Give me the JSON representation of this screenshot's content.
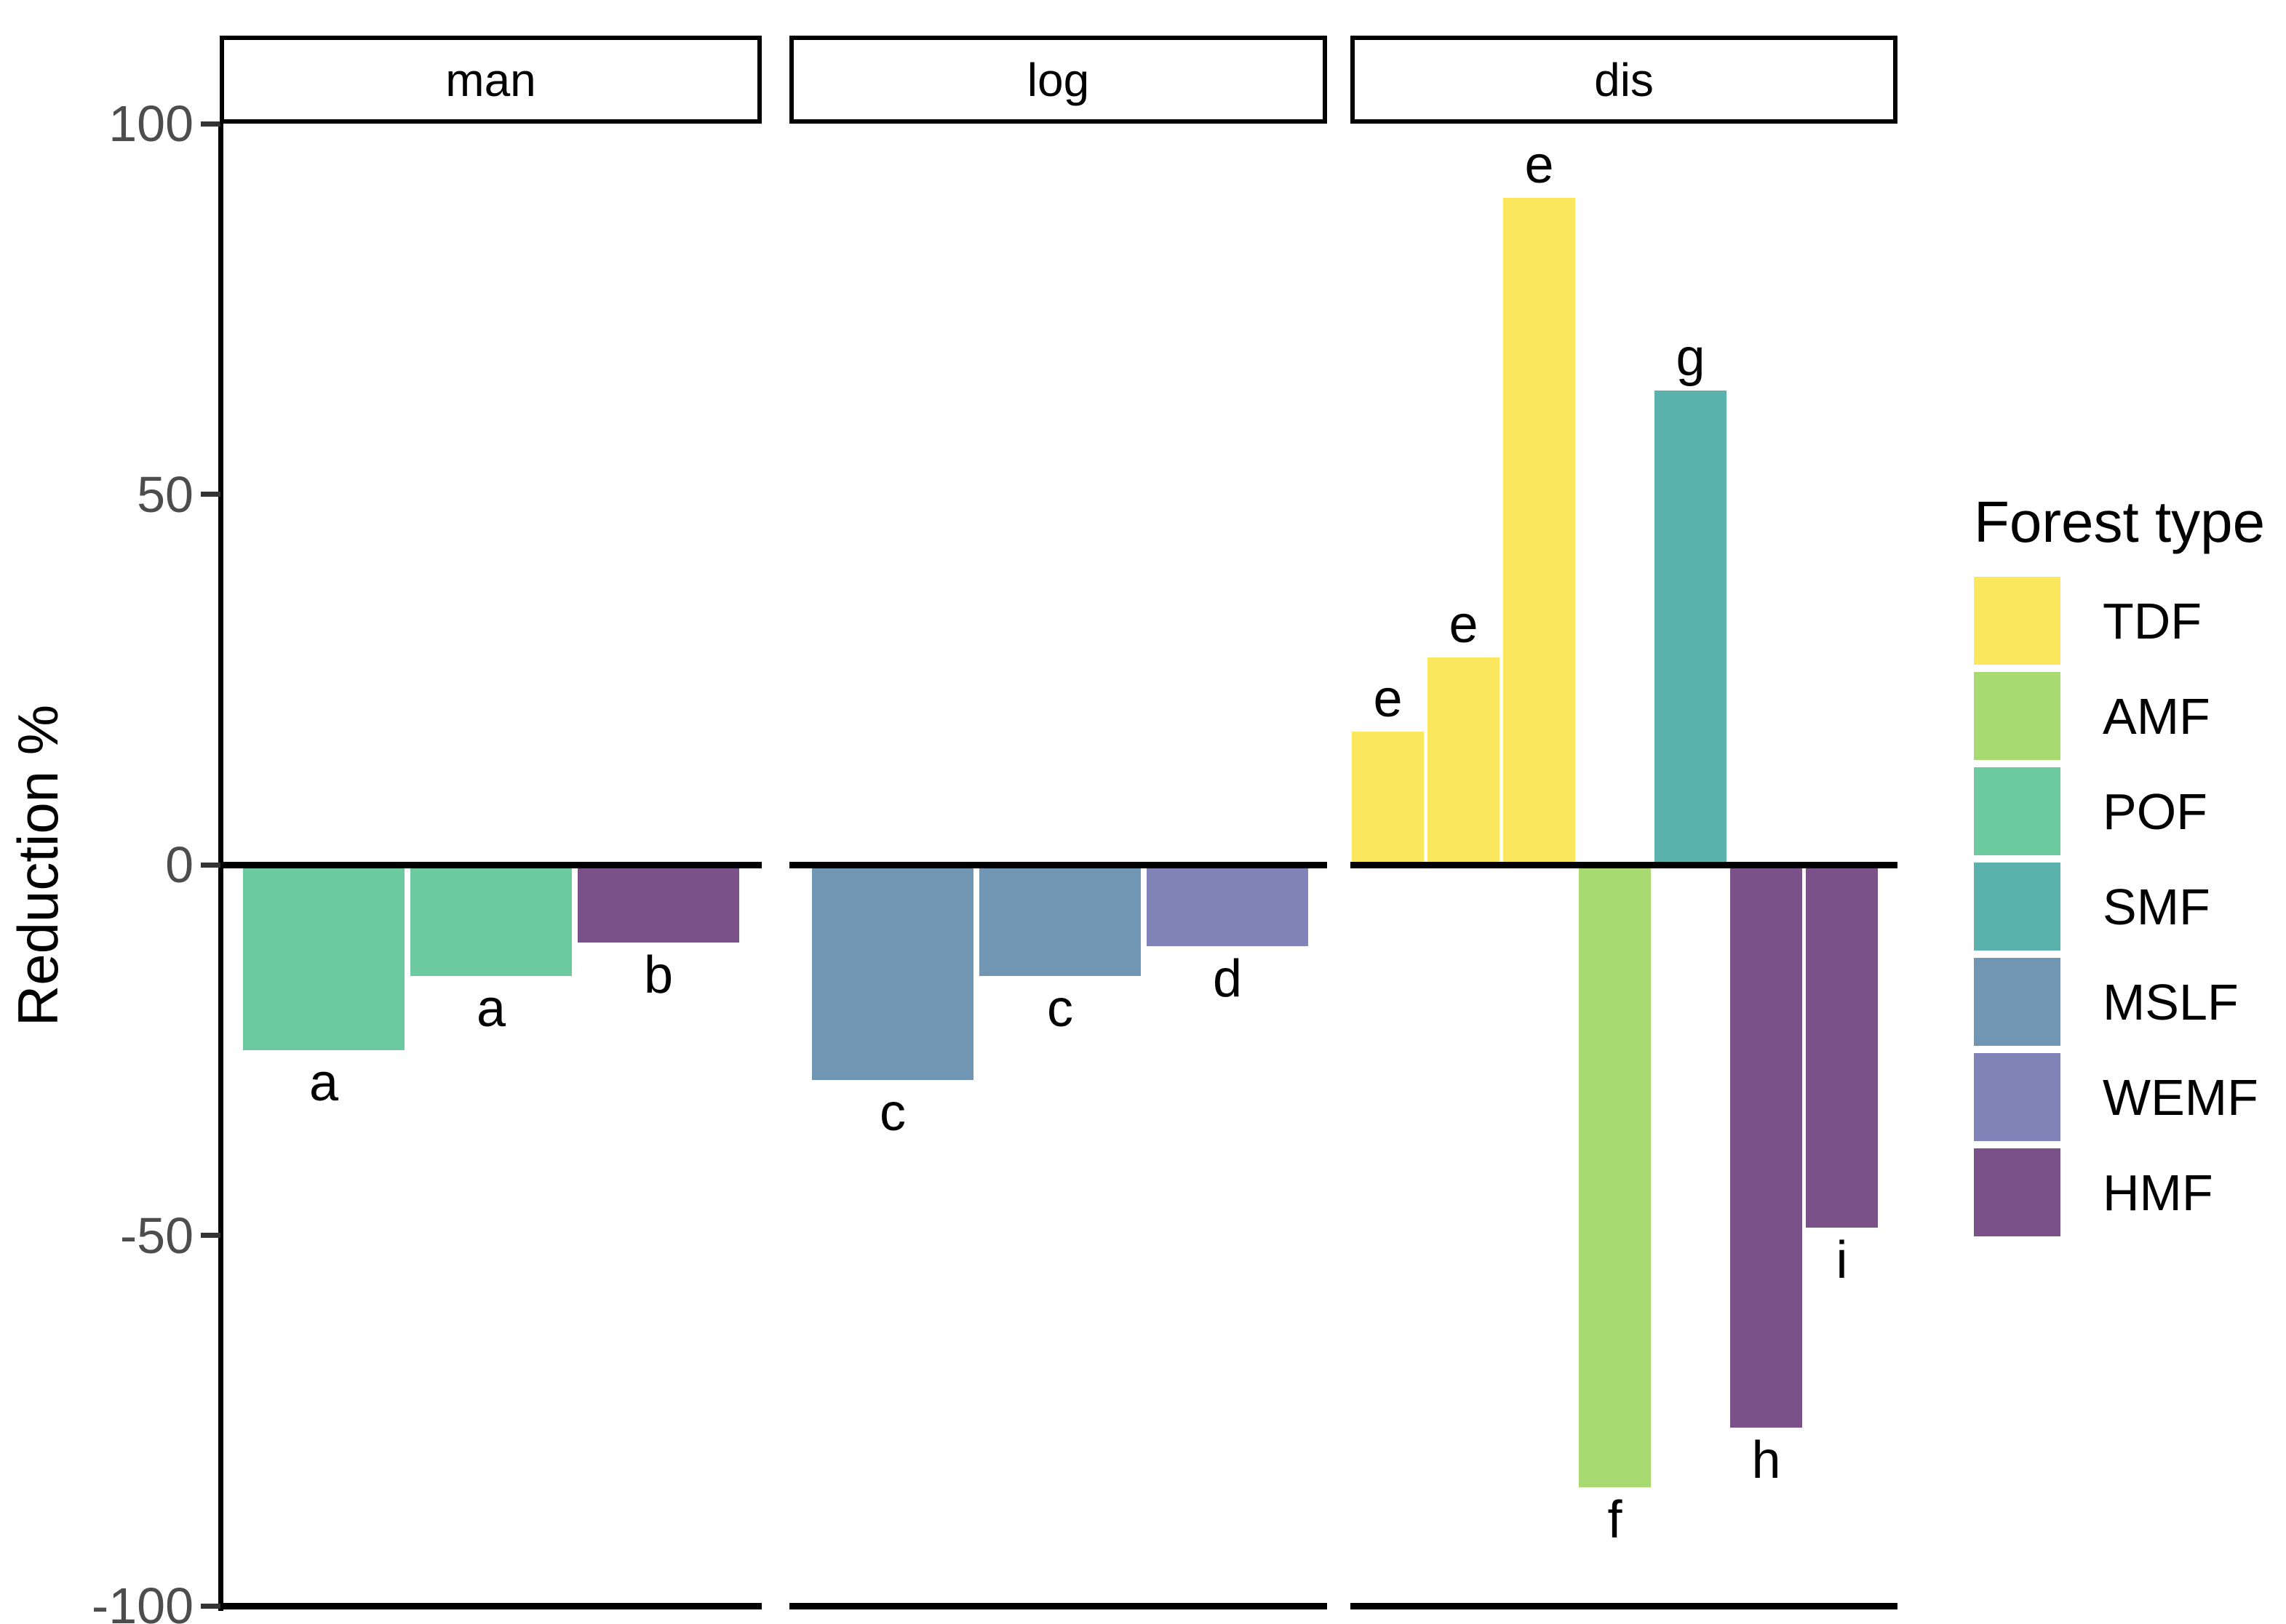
{
  "chart_data": {
    "type": "bar",
    "title": "",
    "ylabel": "Reduction %",
    "xlabel": "",
    "y_ticks": [
      100,
      50,
      0,
      -50,
      -100
    ],
    "ylim": [
      -100,
      100
    ],
    "grid": false,
    "legend_position": "right",
    "legend": {
      "title": "Forest type",
      "entries": [
        {
          "label": "TDF",
          "color": "#FAE75E"
        },
        {
          "label": "AMF",
          "color": "#A7DB72"
        },
        {
          "label": "POF",
          "color": "#6CC9A0"
        },
        {
          "label": "SMF",
          "color": "#5BB2AC"
        },
        {
          "label": "MSLF",
          "color": "#7096B4"
        },
        {
          "label": "WEMF",
          "color": "#8083B8"
        },
        {
          "label": "HMF",
          "color": "#7B5189"
        }
      ]
    },
    "facets": [
      {
        "label": "man",
        "bars": [
          {
            "forest_type": "POF",
            "value": -25,
            "letter": "a"
          },
          {
            "forest_type": "POF",
            "value": -15,
            "letter": "a"
          },
          {
            "forest_type": "HMF",
            "value": -10.5,
            "letter": "b"
          }
        ]
      },
      {
        "label": "log",
        "bars": [
          {
            "forest_type": "MSLF",
            "value": -29,
            "letter": "c"
          },
          {
            "forest_type": "MSLF",
            "value": -15,
            "letter": "c"
          },
          {
            "forest_type": "WEMF",
            "value": -11,
            "letter": "d"
          }
        ]
      },
      {
        "label": "dis",
        "bars": [
          {
            "forest_type": "TDF",
            "value": 18,
            "letter": "e"
          },
          {
            "forest_type": "TDF",
            "value": 28,
            "letter": "e"
          },
          {
            "forest_type": "TDF",
            "value": 90,
            "letter": "e"
          },
          {
            "forest_type": "AMF",
            "value": -84,
            "letter": "f"
          },
          {
            "forest_type": "SMF",
            "value": 64,
            "letter": "g"
          },
          {
            "forest_type": "HMF",
            "value": -76,
            "letter": "h"
          },
          {
            "forest_type": "HMF",
            "value": -49,
            "letter": "i"
          }
        ]
      }
    ]
  }
}
